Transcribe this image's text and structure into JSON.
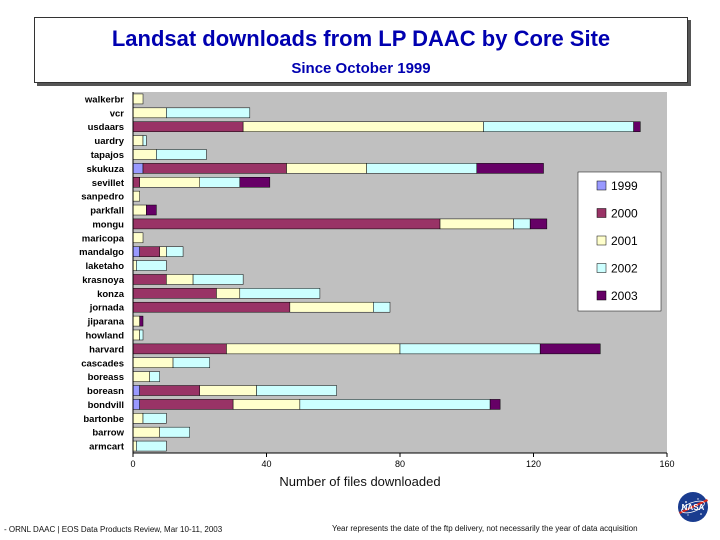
{
  "header": {
    "title": "Landsat downloads from LP DAAC by Core Site",
    "subtitle": "Since October 1999"
  },
  "footer": {
    "left_text": "- ORNL DAAC | EOS Data Products Review, Mar 10-11, 2003",
    "right_text": "Year represents the date of the ftp delivery, not necessarily the year of data acquisition"
  },
  "logo": {
    "icon": "nasa-meatball-logo"
  },
  "colors": {
    "plot_background": "#c0c0c0",
    "series": [
      "#9999ff",
      "#993366",
      "#ffffcc",
      "#ccffff",
      "#660066"
    ]
  },
  "chart_data": {
    "type": "bar",
    "orientation": "horizontal",
    "stacked": true,
    "xlabel": "Number of files downloaded",
    "ylabel": "",
    "xlim": [
      0,
      160
    ],
    "xticks": [
      0,
      40,
      80,
      120,
      160
    ],
    "grid": false,
    "legend_position": "right",
    "categories": [
      "walkerbr",
      "vcr",
      "usdaars",
      "uardry",
      "tapajos",
      "skukuza",
      "sevillet",
      "sanpedro",
      "parkfall",
      "mongu",
      "maricopa",
      "mandalgo",
      "laketaho",
      "krasnoya",
      "konza",
      "jornada",
      "jiparana",
      "howland",
      "harvard",
      "cascades",
      "boreass",
      "boreasn",
      "bondvill",
      "bartonbe",
      "barrow",
      "armcart"
    ],
    "series": [
      {
        "name": "1999",
        "values": [
          0,
          0,
          0,
          0,
          0,
          3,
          0,
          0,
          0,
          0,
          0,
          2,
          0,
          0,
          0,
          0,
          0,
          0,
          0,
          0,
          0,
          2,
          2,
          0,
          0,
          0
        ]
      },
      {
        "name": "2000",
        "values": [
          0,
          0,
          33,
          0,
          0,
          43,
          2,
          0,
          0,
          92,
          0,
          6,
          0,
          10,
          25,
          47,
          0,
          0,
          28,
          0,
          0,
          18,
          28,
          0,
          0,
          0
        ]
      },
      {
        "name": "2001",
        "values": [
          3,
          10,
          72,
          3,
          7,
          24,
          18,
          2,
          4,
          22,
          3,
          2,
          1,
          8,
          7,
          25,
          2,
          2,
          52,
          12,
          5,
          17,
          20,
          3,
          8,
          1
        ]
      },
      {
        "name": "2002",
        "values": [
          0,
          25,
          45,
          1,
          15,
          33,
          12,
          0,
          0,
          5,
          0,
          5,
          9,
          15,
          24,
          5,
          0,
          1,
          42,
          11,
          3,
          24,
          57,
          7,
          9,
          9
        ]
      },
      {
        "name": "2003",
        "values": [
          0,
          0,
          2,
          0,
          0,
          20,
          9,
          0,
          3,
          5,
          0,
          0,
          0,
          0,
          0,
          0,
          1,
          0,
          18,
          0,
          0,
          0,
          3,
          0,
          0,
          0
        ]
      }
    ]
  }
}
